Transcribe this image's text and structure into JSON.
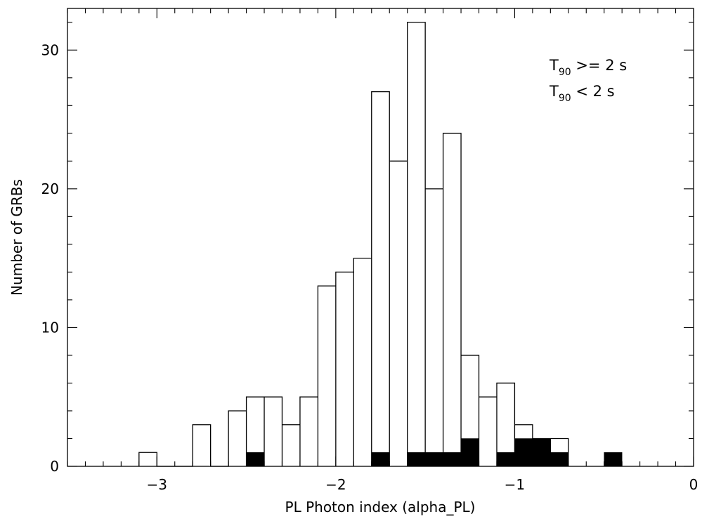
{
  "chart_data": {
    "type": "bar",
    "xlabel": "PL Photon index (alpha_PL)",
    "ylabel": "Number of GRBs",
    "xlim": [
      -3.5,
      0
    ],
    "ylim": [
      0,
      33
    ],
    "x_major_ticks": [
      -3,
      -2,
      -1,
      0
    ],
    "x_tick_labels": [
      "−3",
      "−2",
      "−1",
      "0"
    ],
    "y_major_ticks": [
      0,
      10,
      20,
      30
    ],
    "y_tick_labels": [
      "0",
      "10",
      "20",
      "30"
    ],
    "bin_width": 0.1,
    "legend": {
      "placement": "top-right",
      "entries": [
        {
          "main": "T",
          "sub": "90",
          "rest": " >= 2 s"
        },
        {
          "main": "T",
          "sub": "90",
          "rest": " < 2 s"
        }
      ]
    },
    "series": [
      {
        "label": "T90 >= 2 s",
        "style": "open-step",
        "bin_left_edges": [
          -3.1,
          -3.0,
          -2.9,
          -2.8,
          -2.7,
          -2.6,
          -2.5,
          -2.4,
          -2.3,
          -2.2,
          -2.1,
          -2.0,
          -1.9,
          -1.8,
          -1.7,
          -1.6,
          -1.5,
          -1.4,
          -1.3,
          -1.2,
          -1.1,
          -1.0,
          -0.9,
          -0.8
        ],
        "values": [
          1,
          0,
          0,
          3,
          0,
          4,
          5,
          5,
          3,
          5,
          13,
          14,
          15,
          27,
          22,
          32,
          20,
          24,
          8,
          5,
          6,
          3,
          2,
          2
        ]
      },
      {
        "label": "T90 < 2 s",
        "style": "filled",
        "bin_left_edges": [
          -2.5,
          -1.8,
          -1.6,
          -1.5,
          -1.4,
          -1.3,
          -1.1,
          -1.0,
          -0.9,
          -0.8,
          -0.5
        ],
        "values": [
          1,
          1,
          1,
          1,
          1,
          2,
          1,
          2,
          2,
          1,
          1
        ]
      }
    ]
  }
}
